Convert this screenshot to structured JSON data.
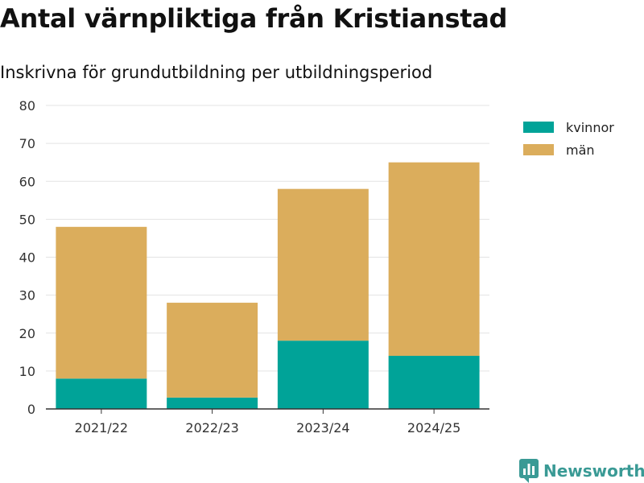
{
  "chart_data": {
    "type": "bar",
    "stacked": true,
    "title": "Antal värnpliktiga från Kristianstad",
    "subtitle": "Inskrivna för grundutbildning per utbildningsperiod",
    "xlabel": "",
    "ylabel": "",
    "categories": [
      "2021/22",
      "2022/23",
      "2023/24",
      "2024/25"
    ],
    "series": [
      {
        "name": "kvinnor",
        "color": "#00a398",
        "values": [
          8,
          3,
          18,
          14
        ]
      },
      {
        "name": "män",
        "color": "#dbad5c",
        "values": [
          40,
          25,
          40,
          51
        ]
      }
    ],
    "ylim": [
      0,
      80
    ],
    "yticks": [
      0,
      10,
      20,
      30,
      40,
      50,
      60,
      70,
      80
    ],
    "grid": true,
    "legend": "top-right"
  },
  "logo": {
    "text": "Newsworthy",
    "icon": "newsworthy-logo-icon"
  }
}
